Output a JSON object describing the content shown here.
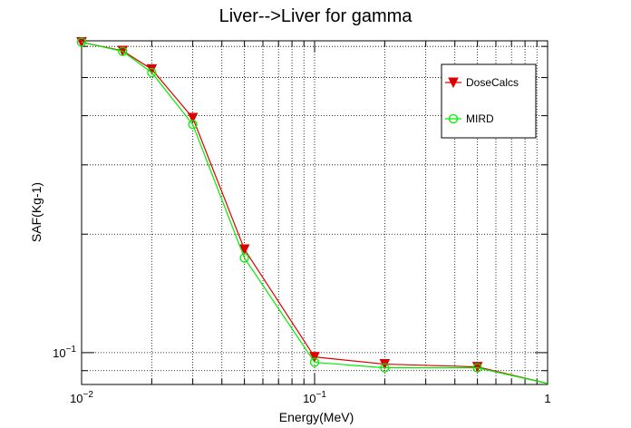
{
  "chart_data": {
    "type": "line",
    "title": "Liver-->Liver for gamma",
    "xlabel": "Energy(MeV)",
    "ylabel": "SAF(Kg-1)",
    "x_scale": "log",
    "y_scale": "log",
    "xlim": [
      0.01,
      1
    ],
    "ylim": [
      0.083,
      0.62
    ],
    "grid": true,
    "legend_position": "top-right",
    "x_ticks": [
      {
        "value": 0.01,
        "base": "10",
        "exp": "−2"
      },
      {
        "value": 0.1,
        "base": "10",
        "exp": "−1"
      },
      {
        "value": 1,
        "base": "1",
        "exp": ""
      }
    ],
    "y_ticks": [
      {
        "value": 0.1,
        "base": "10",
        "exp": "−1"
      }
    ],
    "series": [
      {
        "name": "DoseCalcs",
        "color": "#dd0000",
        "marker": "triangle-down",
        "x": [
          0.01,
          0.015,
          0.02,
          0.03,
          0.05,
          0.1,
          0.2,
          0.5,
          1.0
        ],
        "y": [
          0.615,
          0.585,
          0.525,
          0.395,
          0.183,
          0.0975,
          0.0935,
          0.092,
          0.0835
        ]
      },
      {
        "name": "MIRD",
        "color": "#00ee00",
        "marker": "circle-open",
        "x": [
          0.01,
          0.015,
          0.02,
          0.03,
          0.05,
          0.1,
          0.2,
          0.5,
          1.0
        ],
        "y": [
          0.615,
          0.583,
          0.515,
          0.38,
          0.174,
          0.0945,
          0.0915,
          0.0915,
          0.0835
        ]
      }
    ]
  }
}
